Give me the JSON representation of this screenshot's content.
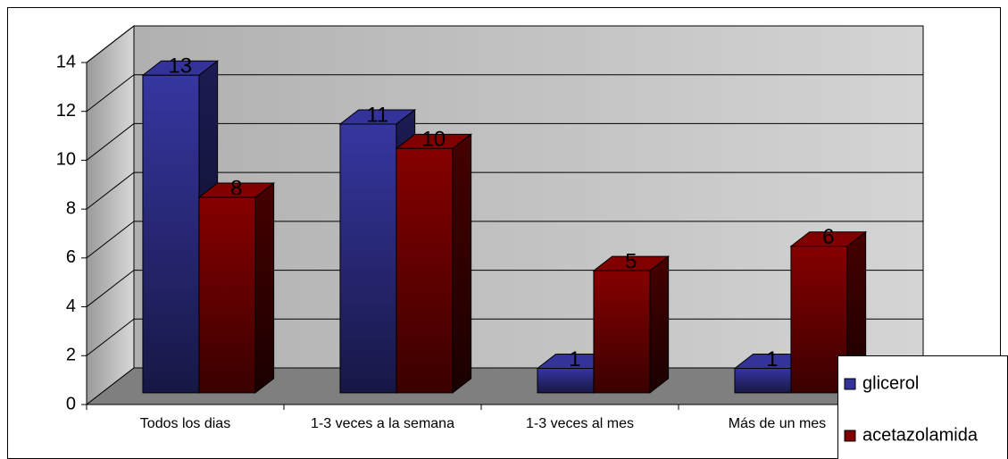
{
  "chart_data": {
    "type": "bar3d",
    "categories": [
      "Todos los dias",
      "1-3 veces a la semana",
      "1-3 veces al mes",
      "Más de  un mes"
    ],
    "series": [
      {
        "name": "glicerol",
        "color": "#333399",
        "values": [
          13,
          11,
          1,
          1
        ]
      },
      {
        "name": "acetazolamida",
        "color": "#800000",
        "values": [
          8,
          10,
          5,
          6
        ]
      }
    ],
    "ylim": [
      0,
      14
    ],
    "yticks": [
      0,
      2,
      4,
      6,
      8,
      10,
      12,
      14
    ],
    "grid": true,
    "legend": "right"
  }
}
